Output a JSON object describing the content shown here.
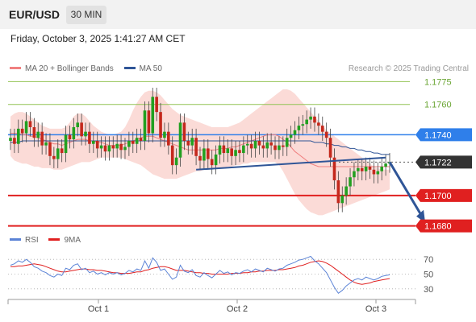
{
  "header": {
    "symbol": "EUR/USD",
    "timeframe": "30 MIN",
    "datetime": "Friday, October 3, 2025 1:41:27 AM CET"
  },
  "credit": "Research © 2025 Trading Central",
  "colors": {
    "ma20": "#f08080",
    "ma50": "#2f5597",
    "resistance": "#2f7fea",
    "support": "#e02020",
    "targets": "#92c353",
    "bollinger_fill": "#fbd7d3",
    "rsi": "#5b83d6",
    "rsi_ma": "#e02020"
  },
  "chart_data": [
    {
      "type": "candlestick",
      "title": "",
      "legend": [
        {
          "name": "MA 20 + Bollinger Bands",
          "color": "#f08080"
        },
        {
          "name": "MA 50",
          "color": "#2f5597"
        }
      ],
      "legend_placement": "top-left",
      "ylim": [
        1.1675,
        1.178
      ],
      "x_ticks": [
        "Oct 1",
        "Oct 2",
        "Oct 3"
      ],
      "levels": [
        {
          "label": "1.1775",
          "value": 1.1775,
          "kind": "target",
          "color": "#92c353"
        },
        {
          "label": "1.1760",
          "value": 1.176,
          "kind": "target",
          "color": "#92c353"
        },
        {
          "label": "1.1740",
          "value": 1.174,
          "kind": "resistance",
          "color": "#2f7fea"
        },
        {
          "label": "1.1722",
          "value": 1.1722,
          "kind": "last_price",
          "color": "#333333"
        },
        {
          "label": "1.1700",
          "value": 1.17,
          "kind": "support",
          "color": "#e02020"
        },
        {
          "label": "1.1680",
          "value": 1.168,
          "kind": "support",
          "color": "#e02020"
        }
      ],
      "close_series": [
        1.1738,
        1.1734,
        1.1744,
        1.1741,
        1.1749,
        1.1745,
        1.1738,
        1.1742,
        1.1733,
        1.1735,
        1.1726,
        1.1724,
        1.1731,
        1.1728,
        1.174,
        1.1737,
        1.1745,
        1.1748,
        1.1739,
        1.1742,
        1.1734,
        1.1736,
        1.1731,
        1.1733,
        1.1729,
        1.1733,
        1.1731,
        1.1734,
        1.173,
        1.1732,
        1.1736,
        1.1734,
        1.1738,
        1.1736,
        1.1756,
        1.1741,
        1.1765,
        1.1755,
        1.1738,
        1.1742,
        1.1733,
        1.172,
        1.1725,
        1.1748,
        1.1736,
        1.1733,
        1.1738,
        1.1726,
        1.1723,
        1.1731,
        1.1724,
        1.172,
        1.1727,
        1.1733,
        1.1728,
        1.1731,
        1.1726,
        1.173,
        1.1728,
        1.1733,
        1.1734,
        1.1731,
        1.1736,
        1.1733,
        1.1731,
        1.1735,
        1.1733,
        1.173,
        1.1733,
        1.1732,
        1.1738,
        1.174,
        1.1743,
        1.1746,
        1.1747,
        1.175,
        1.1752,
        1.1748,
        1.1746,
        1.1742,
        1.1738,
        1.1725,
        1.171,
        1.1695,
        1.17,
        1.1706,
        1.1712,
        1.1716,
        1.1718,
        1.1716,
        1.1719,
        1.1717,
        1.1714,
        1.1716,
        1.1719,
        1.1721,
        1.1722
      ],
      "ma20_series": [
        1.1741,
        1.1741,
        1.1741,
        1.174,
        1.174,
        1.1739,
        1.1739,
        1.1738,
        1.1737,
        1.1736,
        1.1735,
        1.1734,
        1.1734,
        1.1733,
        1.1734,
        1.1735,
        1.1736,
        1.1737,
        1.1737,
        1.1737,
        1.1736,
        1.1736,
        1.1735,
        1.1735,
        1.1734,
        1.1733,
        1.1733,
        1.1733,
        1.1733,
        1.1734,
        1.1735,
        1.1736,
        1.1737,
        1.1738,
        1.1739,
        1.1739,
        1.1739,
        1.1738,
        1.1737,
        1.1736,
        1.1735,
        1.1734,
        1.1733,
        1.1732,
        1.1731,
        1.173,
        1.173,
        1.173,
        1.173,
        1.173,
        1.173,
        1.173,
        1.173,
        1.1731,
        1.1731,
        1.1731,
        1.1732,
        1.1732,
        1.1733,
        1.1734,
        1.1735,
        1.1736,
        1.1737,
        1.1738,
        1.1739,
        1.174,
        1.174,
        1.174,
        1.1739,
        1.1737,
        1.1735,
        1.1732,
        1.1729,
        1.1727,
        1.1725,
        1.1723,
        1.1721,
        1.172,
        1.1719,
        1.1719,
        1.1719,
        1.1719,
        1.1719,
        1.1719,
        1.1719,
        1.1719,
        1.1719,
        1.1719,
        1.1719,
        1.1719,
        1.1719,
        1.1719,
        1.1719,
        1.1719,
        1.1719,
        1.1719,
        1.1719
      ],
      "ma50_series": [
        1.1735,
        1.1735,
        1.1735,
        1.1736,
        1.1736,
        1.1736,
        1.1736,
        1.1736,
        1.1736,
        1.1736,
        1.1736,
        1.1736,
        1.1736,
        1.1736,
        1.1736,
        1.1736,
        1.1736,
        1.1736,
        1.1736,
        1.1736,
        1.1736,
        1.1736,
        1.1736,
        1.1736,
        1.1736,
        1.1736,
        1.1736,
        1.1736,
        1.1736,
        1.1736,
        1.1736,
        1.1736,
        1.1736,
        1.1736,
        1.1736,
        1.1736,
        1.1736,
        1.1736,
        1.1736,
        1.1736,
        1.1736,
        1.1736,
        1.1736,
        1.1736,
        1.1736,
        1.1736,
        1.1736,
        1.1736,
        1.1736,
        1.1736,
        1.1736,
        1.1736,
        1.1736,
        1.1736,
        1.1736,
        1.1736,
        1.1736,
        1.1736,
        1.1736,
        1.1736,
        1.1736,
        1.1736,
        1.1736,
        1.1736,
        1.1736,
        1.1736,
        1.1736,
        1.1736,
        1.1736,
        1.1736,
        1.1736,
        1.1736,
        1.1736,
        1.1736,
        1.1736,
        1.1736,
        1.1736,
        1.1735,
        1.1735,
        1.1735,
        1.1734,
        1.1734,
        1.1733,
        1.1733,
        1.1732,
        1.1732,
        1.1731,
        1.1731,
        1.173,
        1.173,
        1.1729,
        1.1729,
        1.1728,
        1.1728,
        1.1727,
        1.1727,
        1.1727
      ],
      "bollinger_upper": [
        1.1752,
        1.1754,
        1.1755,
        1.1755,
        1.1754,
        1.1752,
        1.175,
        1.1748,
        1.1746,
        1.1745,
        1.1744,
        1.1744,
        1.1744,
        1.1744,
        1.1745,
        1.1748,
        1.1752,
        1.1754,
        1.1754,
        1.1752,
        1.1749,
        1.1746,
        1.1744,
        1.1742,
        1.1741,
        1.174,
        1.174,
        1.1741,
        1.1742,
        1.1745,
        1.175,
        1.1756,
        1.1761,
        1.1765,
        1.1768,
        1.1769,
        1.1769,
        1.1768,
        1.1766,
        1.1763,
        1.176,
        1.1757,
        1.1755,
        1.1753,
        1.1752,
        1.1751,
        1.175,
        1.1749,
        1.1748,
        1.1747,
        1.1746,
        1.1745,
        1.1745,
        1.1745,
        1.1745,
        1.1745,
        1.1746,
        1.1747,
        1.1748,
        1.175,
        1.1752,
        1.1754,
        1.1756,
        1.1758,
        1.176,
        1.1762,
        1.1764,
        1.1766,
        1.1768,
        1.177,
        1.177,
        1.1769,
        1.1767,
        1.1764,
        1.1761,
        1.1758,
        1.1755,
        1.1752,
        1.1749,
        1.1746,
        1.1743,
        1.1741,
        1.1739,
        1.1737,
        1.1735,
        1.1733,
        1.1731,
        1.1729,
        1.1727,
        1.1725,
        1.1723,
        1.1721,
        1.1719,
        1.1718,
        1.1717,
        1.1717,
        1.1717
      ],
      "bollinger_lower": [
        1.1726,
        1.1723,
        1.1722,
        1.1721,
        1.1721,
        1.172,
        1.1719,
        1.1719,
        1.1718,
        1.1718,
        1.1718,
        1.1717,
        1.1717,
        1.1717,
        1.1718,
        1.1719,
        1.172,
        1.1721,
        1.1722,
        1.1722,
        1.1722,
        1.1723,
        1.1724,
        1.1725,
        1.1725,
        1.1725,
        1.1725,
        1.1725,
        1.1725,
        1.1724,
        1.1723,
        1.1722,
        1.1721,
        1.172,
        1.1718,
        1.1716,
        1.1714,
        1.1713,
        1.1712,
        1.1711,
        1.1711,
        1.1711,
        1.1711,
        1.1712,
        1.1713,
        1.1714,
        1.1715,
        1.1716,
        1.1716,
        1.1717,
        1.1717,
        1.1718,
        1.1718,
        1.1718,
        1.1718,
        1.1719,
        1.1719,
        1.172,
        1.172,
        1.1721,
        1.1721,
        1.1722,
        1.1722,
        1.1722,
        1.1722,
        1.1722,
        1.1722,
        1.1722,
        1.172,
        1.1716,
        1.1711,
        1.1706,
        1.1701,
        1.1697,
        1.1694,
        1.1691,
        1.1689,
        1.1688,
        1.1687,
        1.1687,
        1.1688,
        1.1689,
        1.169,
        1.1691,
        1.1692,
        1.1693,
        1.1694,
        1.1695,
        1.1696,
        1.1697,
        1.1698,
        1.1699,
        1.17,
        1.1701,
        1.1702,
        1.1703,
        1.1704
      ],
      "annotations": {
        "trendline": {
          "from_index": 47,
          "from_value": 1.1717,
          "to_index": 95,
          "to_value": 1.1725
        },
        "projection_arrow": {
          "from_index": 96,
          "from_value": 1.1722,
          "to_index": 105,
          "to_value": 1.1682
        }
      }
    },
    {
      "type": "line",
      "title": "",
      "legend": [
        {
          "name": "RSI",
          "color": "#5b83d6"
        },
        {
          "name": "9MA",
          "color": "#e02020"
        }
      ],
      "y_ticks": [
        70,
        50,
        30
      ],
      "ylim": [
        20,
        80
      ],
      "series": [
        {
          "name": "RSI",
          "values": [
            62,
            64,
            68,
            66,
            70,
            66,
            60,
            58,
            54,
            52,
            48,
            46,
            50,
            48,
            58,
            56,
            62,
            64,
            56,
            58,
            52,
            54,
            50,
            52,
            49,
            52,
            50,
            52,
            49,
            51,
            55,
            53,
            57,
            55,
            68,
            58,
            72,
            66,
            55,
            57,
            50,
            43,
            46,
            62,
            54,
            52,
            56,
            48,
            46,
            52,
            48,
            45,
            50,
            55,
            51,
            53,
            49,
            52,
            51,
            54,
            56,
            53,
            57,
            55,
            53,
            58,
            56,
            54,
            57,
            58,
            62,
            64,
            66,
            69,
            70,
            72,
            74,
            68,
            64,
            58,
            52,
            42,
            32,
            24,
            28,
            34,
            38,
            42,
            44,
            42,
            46,
            44,
            42,
            44,
            47,
            48,
            49
          ]
        },
        {
          "name": "9MA",
          "values": [
            60,
            60,
            61,
            61,
            62,
            63,
            64,
            63,
            62,
            60,
            58,
            56,
            54,
            53,
            53,
            54,
            55,
            56,
            57,
            57,
            56,
            56,
            55,
            55,
            54,
            53,
            52,
            52,
            51,
            51,
            51,
            52,
            53,
            53,
            55,
            56,
            58,
            59,
            60,
            60,
            59,
            57,
            55,
            55,
            55,
            54,
            53,
            52,
            52,
            51,
            51,
            50,
            50,
            50,
            50,
            50,
            51,
            51,
            51,
            52,
            52,
            53,
            53,
            54,
            54,
            55,
            55,
            55,
            56,
            56,
            57,
            58,
            59,
            61,
            62,
            64,
            66,
            67,
            68,
            67,
            65,
            62,
            58,
            54,
            50,
            46,
            42,
            39,
            37,
            36,
            37,
            38,
            40,
            41,
            42,
            43,
            44
          ]
        }
      ]
    }
  ]
}
